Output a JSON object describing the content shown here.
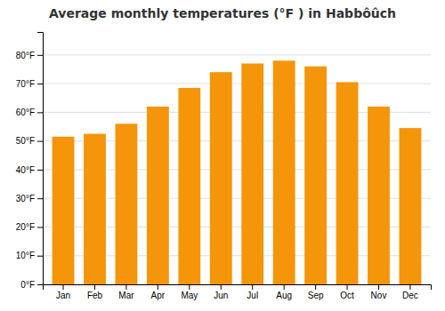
{
  "chart_data": {
    "type": "bar",
    "title": "Average monthly temperatures (°F ) in Habbôûch",
    "categories": [
      "Jan",
      "Feb",
      "Mar",
      "Apr",
      "May",
      "Jun",
      "Jul",
      "Aug",
      "Sep",
      "Oct",
      "Nov",
      "Dec"
    ],
    "values": [
      51.5,
      52.5,
      56.0,
      62.0,
      68.5,
      74.0,
      77.0,
      78.0,
      76.0,
      70.5,
      62.0,
      54.5
    ],
    "color": "#F5950A",
    "ylim": [
      0,
      88
    ],
    "yticks": [
      {
        "value": 0,
        "label": "0°F"
      },
      {
        "value": 10,
        "label": "10°F"
      },
      {
        "value": 20,
        "label": "20°F"
      },
      {
        "value": 30,
        "label": "30°F"
      },
      {
        "value": 40,
        "label": "40°F"
      },
      {
        "value": 50,
        "label": "50°F"
      },
      {
        "value": 60,
        "label": "60°F"
      },
      {
        "value": 70,
        "label": "70°F"
      },
      {
        "value": 80,
        "label": "80°F"
      }
    ],
    "grid": true
  }
}
